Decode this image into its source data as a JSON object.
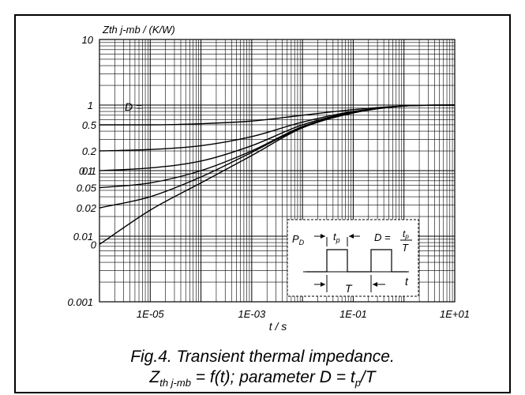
{
  "chart_data": {
    "type": "line",
    "ylabel": "Zth j-mb / (K/W)",
    "xlabel": "t / s",
    "x_scale": "log",
    "y_scale": "log",
    "xlim": [
      1e-06,
      10
    ],
    "ylim": [
      0.001,
      10
    ],
    "x_tick_labels": [
      {
        "value": 1e-05,
        "label": "1E-05"
      },
      {
        "value": 0.001,
        "label": "1E-03"
      },
      {
        "value": 0.1,
        "label": "1E-01"
      },
      {
        "value": 10,
        "label": "1E+01"
      }
    ],
    "y_tick_labels": [
      {
        "value": 10,
        "label": "10"
      },
      {
        "value": 1,
        "label": "1"
      },
      {
        "value": 0.1,
        "label": "0.1"
      },
      {
        "value": 0.01,
        "label": "0.01"
      },
      {
        "value": 0.001,
        "label": "0.001"
      }
    ],
    "grid": true,
    "parameter_label": "D =",
    "series": [
      {
        "name": "0.5",
        "points": [
          [
            1e-06,
            0.5
          ],
          [
            1e-05,
            0.5
          ],
          [
            0.0001,
            0.52
          ],
          [
            0.001,
            0.57
          ],
          [
            0.01,
            0.7
          ],
          [
            0.1,
            0.85
          ],
          [
            1,
            0.97
          ],
          [
            10,
            1.0
          ]
        ]
      },
      {
        "name": "0.2",
        "points": [
          [
            1e-06,
            0.2
          ],
          [
            1e-05,
            0.21
          ],
          [
            0.0001,
            0.24
          ],
          [
            0.001,
            0.33
          ],
          [
            0.01,
            0.55
          ],
          [
            0.1,
            0.8
          ],
          [
            1,
            0.97
          ],
          [
            10,
            1.0
          ]
        ]
      },
      {
        "name": "0.1",
        "points": [
          [
            1e-06,
            0.1
          ],
          [
            1e-05,
            0.11
          ],
          [
            0.0001,
            0.14
          ],
          [
            0.001,
            0.24
          ],
          [
            0.01,
            0.5
          ],
          [
            0.1,
            0.78
          ],
          [
            1,
            0.97
          ],
          [
            10,
            1.0
          ]
        ]
      },
      {
        "name": "0.05",
        "points": [
          [
            1e-06,
            0.055
          ],
          [
            1e-05,
            0.065
          ],
          [
            0.0001,
            0.1
          ],
          [
            0.001,
            0.2
          ],
          [
            0.01,
            0.47
          ],
          [
            0.1,
            0.77
          ],
          [
            1,
            0.97
          ],
          [
            10,
            1.0
          ]
        ]
      },
      {
        "name": "0.02",
        "points": [
          [
            1e-06,
            0.027
          ],
          [
            1e-05,
            0.04
          ],
          [
            0.0001,
            0.08
          ],
          [
            0.001,
            0.19
          ],
          [
            0.01,
            0.46
          ],
          [
            0.1,
            0.76
          ],
          [
            1,
            0.97
          ],
          [
            10,
            1.0
          ]
        ]
      },
      {
        "name": "0",
        "points": [
          [
            1e-06,
            0.0075
          ],
          [
            1e-05,
            0.025
          ],
          [
            0.0001,
            0.065
          ],
          [
            0.001,
            0.17
          ],
          [
            0.01,
            0.45
          ],
          [
            0.1,
            0.76
          ],
          [
            1,
            0.97
          ],
          [
            10,
            1.0
          ]
        ]
      }
    ],
    "inset": {
      "p_label": "P",
      "p_sub": "D",
      "tp_label": "t",
      "tp_sub": "p",
      "formula_label": "D =",
      "formula_num": "t",
      "formula_num_sub": "p",
      "formula_den": "T",
      "period_label": "T",
      "time_label": "t"
    }
  },
  "caption": {
    "line1": "Fig.4.  Transient thermal impedance.",
    "z_main": "Z",
    "z_sub": "th j-mb",
    "mid": " = f(t); parameter D = t",
    "p_sub": "p",
    "end": "/T"
  }
}
